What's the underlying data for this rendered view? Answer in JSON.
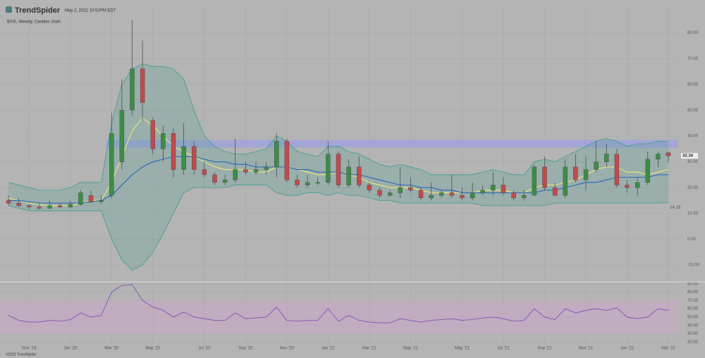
{
  "header": {
    "brand": "TrendSpider",
    "timestamp": "May 2, 2022 10:52PM EDT",
    "footer": "©2022 TrendSpider"
  },
  "chart_data": [
    {
      "type": "candlestick",
      "title": "$VIX, Weekly, Candles chart",
      "categories": [
        null,
        null,
        "Nov '19",
        null,
        null,
        null,
        "Jan '20",
        null,
        null,
        null,
        "Mar '20",
        null,
        null,
        null,
        "May '20",
        null,
        null,
        null,
        null,
        "Jul '20",
        null,
        null,
        null,
        "Sep '20",
        null,
        null,
        null,
        "Nov '20",
        null,
        null,
        null,
        "Jan '21",
        null,
        null,
        null,
        "Mar '21",
        null,
        null,
        null,
        "May '21",
        null,
        null,
        null,
        null,
        "May '21",
        null,
        null,
        null,
        "Jul '21",
        null,
        null,
        null,
        "Sep '21",
        null,
        null,
        null,
        "Nov '21",
        null,
        null,
        null,
        "Jan '22",
        null,
        null,
        null,
        "Mar '22"
      ],
      "open": [
        15,
        14,
        13,
        12.5,
        12,
        13,
        12.5,
        13.5,
        17,
        14.5,
        17,
        30,
        50,
        66,
        46,
        35,
        41,
        27,
        36,
        27,
        25,
        22,
        23,
        27,
        26,
        27,
        28,
        38,
        23,
        21,
        22,
        22,
        33,
        21,
        28,
        21,
        19,
        17,
        18,
        20,
        19,
        16,
        17,
        18,
        17,
        16,
        18,
        19,
        21,
        18,
        16,
        17,
        28,
        20,
        17,
        28,
        23,
        27,
        30,
        33,
        21,
        20,
        22,
        31,
        33.5
      ],
      "high": [
        17,
        16,
        13.5,
        14,
        15,
        14,
        15,
        19,
        19,
        17,
        49,
        62,
        85,
        77,
        47,
        44,
        43,
        45,
        38,
        30,
        26,
        25,
        39,
        30,
        30,
        30,
        41,
        39,
        25,
        25,
        24,
        38,
        34,
        31,
        32,
        22,
        20,
        19,
        28,
        24,
        20,
        22,
        19,
        25,
        20,
        22,
        21,
        26,
        24,
        19,
        19,
        29,
        32,
        22,
        31,
        33,
        32,
        38,
        37,
        35,
        23,
        24,
        34,
        34,
        34
      ],
      "low": [
        13,
        12.5,
        11.5,
        11.5,
        11.8,
        12,
        12,
        13,
        14,
        13.5,
        16,
        27,
        48,
        46,
        33,
        30,
        24,
        25,
        25,
        24,
        21,
        21,
        22,
        25,
        25,
        25,
        24,
        22,
        20,
        20,
        21,
        21,
        20,
        20,
        20,
        18,
        16,
        16.5,
        16,
        18,
        15,
        15,
        16,
        16,
        15,
        15,
        17,
        17,
        17,
        15,
        15,
        17,
        19,
        17,
        16,
        22,
        19,
        26,
        28,
        20,
        18,
        17,
        21,
        28,
        30
      ],
      "close": [
        14,
        13,
        12.5,
        12,
        13,
        12.5,
        13.5,
        18,
        14.5,
        15,
        41,
        50,
        66,
        53,
        35,
        41,
        27,
        36,
        27,
        25,
        22,
        23,
        27,
        26,
        27,
        28,
        38,
        23,
        21,
        22,
        22,
        33,
        21,
        28,
        21,
        19,
        17,
        18,
        20,
        19,
        16,
        17,
        18,
        17,
        16,
        18,
        19,
        21,
        18,
        16,
        17,
        28,
        20,
        17,
        28,
        23,
        27,
        30,
        33,
        21,
        20,
        22,
        31,
        33,
        32.34
      ],
      "overlays": [
        {
          "color": "#3f9d8c",
          "values": [
            22,
            21,
            20,
            19,
            19,
            19,
            20,
            22,
            22,
            22,
            45,
            60,
            66,
            68,
            67,
            67,
            66,
            62,
            50,
            40,
            36,
            34,
            33,
            33,
            34,
            35,
            40,
            38,
            34,
            33,
            32,
            36,
            36,
            34,
            33,
            31,
            29,
            28,
            29,
            28,
            27,
            25,
            25,
            25,
            25,
            25,
            26,
            27,
            26,
            25,
            25,
            30,
            31,
            30,
            32,
            34,
            36,
            38,
            39,
            38,
            36,
            37,
            37,
            38,
            38
          ]
        },
        {
          "color": "#3f9d8c",
          "values": [
            13,
            12,
            11,
            11,
            11,
            11,
            11,
            11,
            11,
            11,
            0,
            -8,
            -12,
            -10,
            -5,
            2,
            10,
            18,
            20,
            20,
            20,
            20,
            21,
            21,
            21,
            21,
            18,
            17,
            17,
            18,
            18,
            17,
            18,
            17,
            17,
            16,
            15,
            15,
            14,
            14,
            14,
            14,
            14,
            14,
            14,
            14,
            13,
            13,
            13,
            13,
            13,
            13,
            13,
            14,
            14,
            14,
            14,
            14,
            14,
            14,
            14,
            14,
            14,
            14,
            14.18
          ]
        },
        {
          "color": "#e8e27a",
          "values": [
            16,
            15,
            14,
            13.5,
            13,
            13,
            13,
            14,
            15,
            15,
            22,
            32,
            42,
            47,
            44,
            40,
            36,
            34,
            32,
            30,
            28,
            27,
            27,
            27,
            26,
            26,
            28,
            28,
            27,
            26,
            25,
            25,
            26,
            25,
            24,
            22,
            21,
            20,
            20,
            20,
            19,
            18,
            18,
            18,
            18,
            18,
            19,
            19,
            19,
            18,
            18,
            20,
            21,
            21,
            22,
            23,
            25,
            27,
            28,
            28,
            26,
            26,
            25,
            26,
            27
          ]
        },
        {
          "color": "#2f6fb8",
          "values": [
            15,
            15,
            14.5,
            14,
            14,
            14,
            14,
            14,
            14.5,
            15,
            17,
            21,
            25,
            28,
            30,
            31,
            32,
            32,
            32,
            31,
            30,
            30,
            29,
            29,
            28,
            28,
            28,
            28,
            27,
            27,
            26,
            26,
            26,
            25,
            25,
            24,
            23,
            22,
            21,
            21,
            20,
            20,
            19,
            19,
            18,
            18,
            18,
            18,
            18,
            18,
            18,
            18,
            19,
            19,
            20,
            21,
            22,
            22,
            23,
            24,
            24,
            24,
            24,
            25,
            25
          ]
        }
      ],
      "zone": [
        35.5,
        38.5
      ],
      "up_color": "#3d8d45",
      "down_color": "#c24a4d",
      "zone_color": "#9ea2e0",
      "ylim": [
        -16,
        90
      ],
      "yticks": [
        {
          "value": -10,
          "label": "-10.00"
        },
        {
          "value": 0,
          "label": "0.00"
        },
        {
          "value": 10,
          "label": "10.00"
        },
        {
          "value": 20,
          "label": "20.00"
        },
        {
          "value": 30,
          "label": "30.00"
        },
        {
          "value": 40,
          "label": "40.00"
        },
        {
          "value": 50,
          "label": "50.00"
        },
        {
          "value": 60,
          "label": "60.00"
        },
        {
          "value": 70,
          "label": "70.00"
        },
        {
          "value": 80,
          "label": "80.00"
        }
      ],
      "grid": true
    },
    {
      "type": "line",
      "color": "#8a58b8",
      "values": [
        52,
        46,
        44,
        44,
        46,
        45,
        47,
        55,
        50,
        52,
        80,
        88,
        89,
        70,
        62,
        58,
        50,
        56,
        50,
        48,
        46,
        46,
        55,
        48,
        49,
        50,
        62,
        46,
        45,
        46,
        46,
        60,
        45,
        52,
        46,
        44,
        43,
        43,
        48,
        46,
        44,
        46,
        47,
        48,
        46,
        47,
        49,
        50,
        48,
        45,
        46,
        60,
        50,
        47,
        60,
        55,
        58,
        60,
        58,
        61,
        50,
        48,
        50,
        60,
        58
      ],
      "band": [
        30,
        70
      ],
      "band_color": "#cfa3cf",
      "ylim": [
        16,
        94
      ],
      "yticks": [
        {
          "value": 20,
          "label": "20.00"
        },
        {
          "value": 30,
          "label": "30.00"
        },
        {
          "value": 40,
          "label": "40.00"
        },
        {
          "value": 50,
          "label": "50.00"
        },
        {
          "value": 60,
          "label": "60.00"
        },
        {
          "value": 70,
          "label": "70.00"
        },
        {
          "value": 80,
          "label": "80.00"
        },
        {
          "value": 90,
          "label": "90.00"
        }
      ],
      "grid": true
    }
  ]
}
